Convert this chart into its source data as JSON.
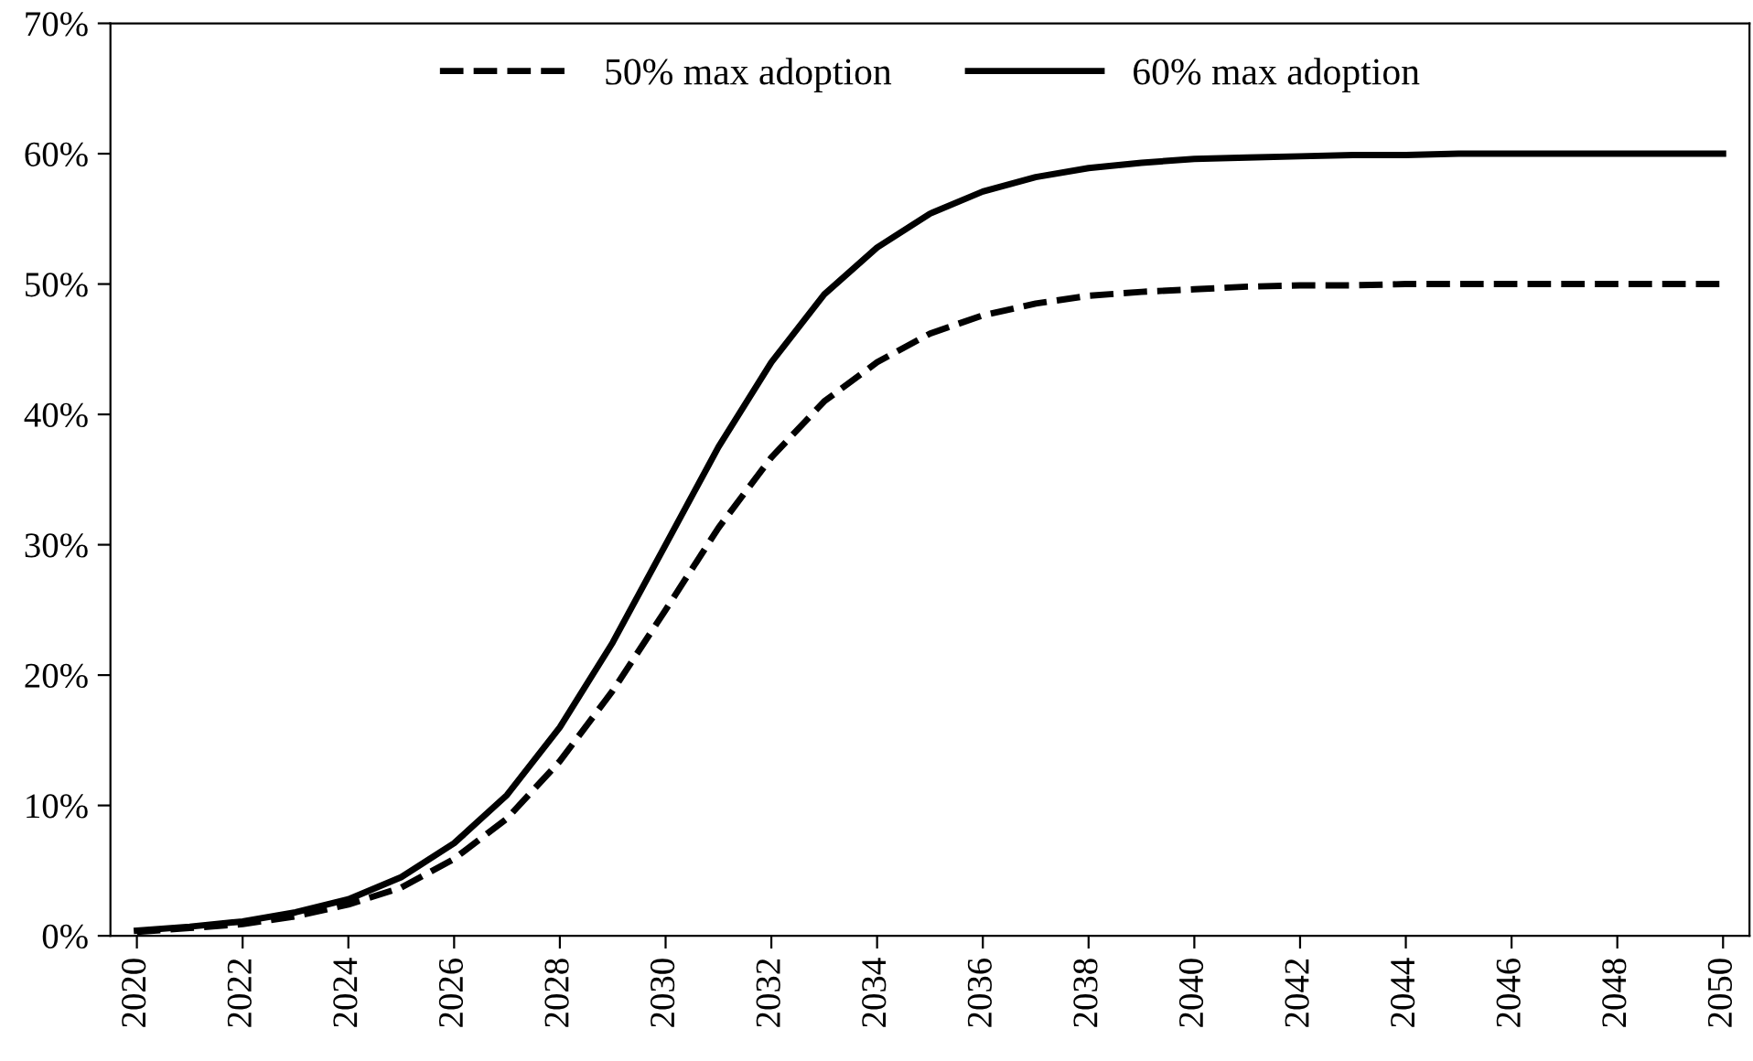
{
  "chart_data": {
    "type": "line",
    "x": [
      2020,
      2021,
      2022,
      2023,
      2024,
      2025,
      2026,
      2027,
      2028,
      2029,
      2030,
      2031,
      2032,
      2033,
      2034,
      2035,
      2036,
      2037,
      2038,
      2039,
      2040,
      2041,
      2042,
      2043,
      2044,
      2045,
      2046,
      2047,
      2048,
      2049,
      2050
    ],
    "series": [
      {
        "name": "50% max adoption",
        "color": "#000000",
        "line_style": "dashed",
        "values": [
          0.3,
          0.6,
          0.9,
          1.5,
          2.4,
          3.7,
          5.9,
          9,
          13.4,
          18.8,
          25,
          31.3,
          36.7,
          41,
          44,
          46.2,
          47.6,
          48.5,
          49.1,
          49.4,
          49.6,
          49.8,
          49.9,
          49.9,
          50,
          50,
          50,
          50,
          50,
          50,
          50
        ]
      },
      {
        "name": "60% max adoption",
        "color": "#000000",
        "line_style": "solid",
        "values": [
          0.4,
          0.7,
          1.1,
          1.8,
          2.8,
          4.5,
          7.1,
          10.8,
          16,
          22.5,
          30,
          37.5,
          44,
          49.2,
          52.8,
          55.4,
          57.1,
          58.2,
          58.9,
          59.3,
          59.6,
          59.7,
          59.8,
          59.9,
          59.9,
          60,
          60,
          60,
          60,
          60,
          60
        ]
      }
    ],
    "xlim": [
      2019.5,
      2050.5
    ],
    "xticks": [
      2020,
      2022,
      2024,
      2026,
      2028,
      2030,
      2032,
      2034,
      2036,
      2038,
      2040,
      2042,
      2044,
      2046,
      2048,
      2050
    ],
    "ylim": [
      0,
      70
    ],
    "yticks": [
      {
        "value": 0,
        "label": "0%"
      },
      {
        "value": 10,
        "label": "10%"
      },
      {
        "value": 20,
        "label": "20%"
      },
      {
        "value": 30,
        "label": "30%"
      },
      {
        "value": 40,
        "label": "40%"
      },
      {
        "value": 50,
        "label": "50%"
      },
      {
        "value": 60,
        "label": "60%"
      },
      {
        "value": 70,
        "label": "70%"
      }
    ],
    "grid": false,
    "legend": "top",
    "marker": "none"
  }
}
